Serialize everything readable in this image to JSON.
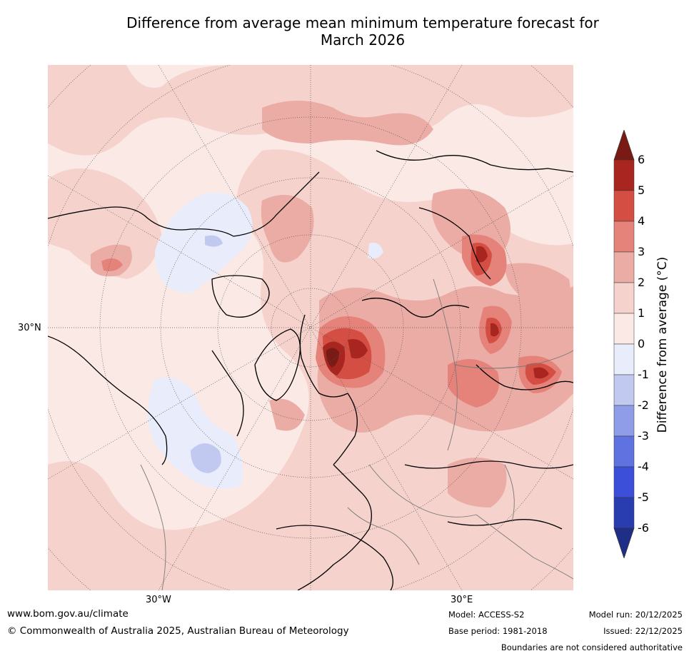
{
  "title_line1": "Difference from average mean minimum temperature forecast for",
  "title_line2": "March 2026",
  "map": {
    "projection": "polar stereographic",
    "lat_label": "30°N",
    "lon_labels": [
      "30°W",
      "30°E"
    ],
    "colors": {
      "cold_1": "#e8ecfb",
      "cold_2": "#c2c9f0",
      "warm_0_1": "#fbe9e6",
      "warm_1_2": "#f5d2cc",
      "warm_2_3": "#ebaca6",
      "warm_3_4": "#e5837a",
      "warm_4_5": "#d44e43",
      "warm_5_6": "#a8261f",
      "warm_gt6": "#7a1a15",
      "coast": "#000000",
      "border": "#7a7a7a"
    }
  },
  "colorbar": {
    "label": "Difference from average (°C)",
    "ticks": [
      "6",
      "5",
      "4",
      "3",
      "2",
      "1",
      "0",
      "-1",
      "-2",
      "-3",
      "-4",
      "-5",
      "-6"
    ],
    "colors": [
      "#a8261f",
      "#d44e43",
      "#e5837a",
      "#ebaca6",
      "#f5d2cc",
      "#fbe9e6",
      "#e8ecfb",
      "#c2c9f0",
      "#8f9ce8",
      "#6072e0",
      "#3b4fd9",
      "#2a3db0"
    ],
    "extend_top_color": "#7a1a15",
    "extend_bottom_color": "#1f2e86"
  },
  "footer": {
    "website": "www.bom.gov.au/climate",
    "copyright": "© Commonwealth of Australia 2025, Australian Bureau of Meteorology",
    "model": "Model: ACCESS-S2",
    "base_period": "Base period: 1981-2018",
    "model_run": "Model run: 20/12/2025",
    "issued": "Issued: 22/12/2025",
    "disclaimer": "Boundaries are not considered authoritative"
  }
}
